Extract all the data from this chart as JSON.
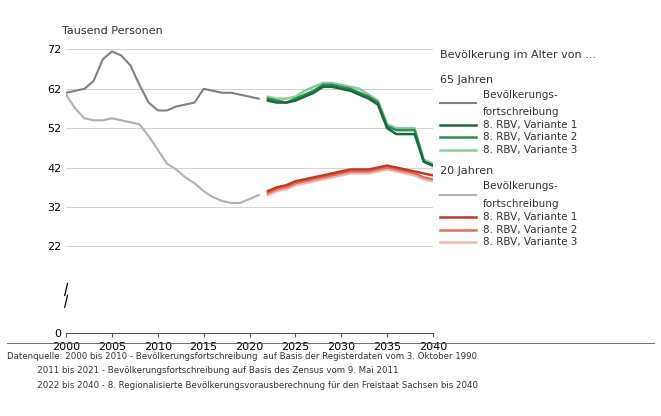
{
  "title_y_label": "Tausend Personen",
  "legend_title": "Bevölkerung im Alter von ...",
  "ylim": [
    0,
    74
  ],
  "yticks": [
    0,
    22,
    32,
    42,
    52,
    62,
    72
  ],
  "xlim": [
    2000,
    2040
  ],
  "xticks": [
    2000,
    2005,
    2010,
    2015,
    2020,
    2025,
    2030,
    2035,
    2040
  ],
  "background_color": "#ffffff",
  "footnote_line1": "Datenquelle: 2000 bis 2010 - Bevölkerungsfortschreibung  auf Basis der Registerdaten vom 3. Oktober 1990",
  "footnote_line2": "           2011 bis 2021 - Bevölkerungsfortschreibung auf Basis des Zensus vom 9. Mai 2011",
  "footnote_line3": "           2022 bis 2040 - 8. Regionalisierte Bevölkerungsvorausberechnung für den Freistaat Sachsen bis 2040",
  "series_65_bev": {
    "label": "Bevölkerungs-\nfortschreibung",
    "color": "#808080",
    "linewidth": 1.5,
    "x": [
      2000,
      2001,
      2002,
      2003,
      2004,
      2005,
      2006,
      2007,
      2008,
      2009,
      2010,
      2011,
      2012,
      2013,
      2014,
      2015,
      2016,
      2017,
      2018,
      2019,
      2020,
      2021
    ],
    "y": [
      61.0,
      61.5,
      62.0,
      64.0,
      69.5,
      71.5,
      70.5,
      68.0,
      63.0,
      58.5,
      56.5,
      56.5,
      57.5,
      58.0,
      58.5,
      62.0,
      61.5,
      61.0,
      61.0,
      60.5,
      60.0,
      59.5
    ]
  },
  "series_65_v1": {
    "label": "8. RBV, Variante 1",
    "color": "#1a6b3c",
    "linewidth": 1.8,
    "x": [
      2022,
      2023,
      2024,
      2025,
      2026,
      2027,
      2028,
      2029,
      2030,
      2031,
      2032,
      2033,
      2034,
      2035,
      2036,
      2037,
      2038,
      2039,
      2040
    ],
    "y": [
      59.0,
      58.5,
      58.5,
      59.0,
      60.0,
      61.0,
      62.5,
      62.5,
      62.0,
      61.5,
      60.5,
      59.5,
      58.0,
      52.0,
      50.5,
      50.5,
      50.5,
      43.5,
      42.5
    ]
  },
  "series_65_v2": {
    "label": "8. RBV, Variante 2",
    "color": "#2e8b57",
    "linewidth": 1.8,
    "x": [
      2022,
      2023,
      2024,
      2025,
      2026,
      2027,
      2028,
      2029,
      2030,
      2031,
      2032,
      2033,
      2034,
      2035,
      2036,
      2037,
      2038,
      2039,
      2040
    ],
    "y": [
      59.5,
      59.0,
      58.5,
      59.5,
      60.5,
      61.5,
      63.0,
      63.0,
      62.5,
      62.0,
      61.0,
      60.0,
      58.5,
      52.5,
      51.5,
      51.5,
      51.5,
      43.5,
      42.5
    ]
  },
  "series_65_v3": {
    "label": "8. RBV, Variante 3",
    "color": "#90c9a0",
    "linewidth": 1.8,
    "x": [
      2022,
      2023,
      2024,
      2025,
      2026,
      2027,
      2028,
      2029,
      2030,
      2031,
      2032,
      2033,
      2034,
      2035,
      2036,
      2037,
      2038,
      2039,
      2040
    ],
    "y": [
      60.0,
      59.5,
      59.5,
      60.0,
      61.5,
      62.5,
      63.5,
      63.5,
      63.0,
      62.5,
      62.0,
      60.5,
      59.0,
      53.0,
      52.0,
      52.0,
      52.0,
      44.0,
      43.0
    ]
  },
  "series_20_bev": {
    "label": "Bevölkerungs-\nfortschreibung",
    "color": "#b0b0b0",
    "linewidth": 1.5,
    "x": [
      2000,
      2001,
      2002,
      2003,
      2004,
      2005,
      2006,
      2007,
      2008,
      2009,
      2010,
      2011,
      2012,
      2013,
      2014,
      2015,
      2016,
      2017,
      2018,
      2019,
      2020,
      2021
    ],
    "y": [
      60.5,
      57.0,
      54.5,
      54.0,
      54.0,
      54.5,
      54.0,
      53.5,
      53.0,
      50.0,
      46.5,
      43.0,
      41.5,
      39.5,
      38.0,
      36.0,
      34.5,
      33.5,
      33.0,
      33.0,
      34.0,
      35.0
    ]
  },
  "series_20_v1": {
    "label": "8. RBV, Variante 1",
    "color": "#c0392b",
    "linewidth": 1.8,
    "x": [
      2022,
      2023,
      2024,
      2025,
      2026,
      2027,
      2028,
      2029,
      2030,
      2031,
      2032,
      2033,
      2034,
      2035,
      2036,
      2037,
      2038,
      2039,
      2040
    ],
    "y": [
      36.0,
      37.0,
      37.5,
      38.5,
      39.0,
      39.5,
      40.0,
      40.5,
      41.0,
      41.5,
      41.5,
      41.5,
      42.0,
      42.5,
      42.0,
      41.5,
      41.0,
      40.5,
      40.0
    ]
  },
  "series_20_v2": {
    "label": "8. RBV, Variante 2",
    "color": "#e07060",
    "linewidth": 1.8,
    "x": [
      2022,
      2023,
      2024,
      2025,
      2026,
      2027,
      2028,
      2029,
      2030,
      2031,
      2032,
      2033,
      2034,
      2035,
      2036,
      2037,
      2038,
      2039,
      2040
    ],
    "y": [
      35.5,
      36.5,
      37.0,
      38.0,
      38.5,
      39.0,
      39.5,
      40.0,
      40.5,
      41.0,
      41.0,
      41.0,
      41.5,
      42.0,
      41.5,
      41.0,
      40.5,
      39.5,
      39.0
    ]
  },
  "series_20_v3": {
    "label": "8. RBV, Variante 3",
    "color": "#f0b8b0",
    "linewidth": 1.8,
    "x": [
      2022,
      2023,
      2024,
      2025,
      2026,
      2027,
      2028,
      2029,
      2030,
      2031,
      2032,
      2033,
      2034,
      2035,
      2036,
      2037,
      2038,
      2039,
      2040
    ],
    "y": [
      35.0,
      36.0,
      36.5,
      37.5,
      38.0,
      38.5,
      39.0,
      39.5,
      40.0,
      40.5,
      40.5,
      40.5,
      41.0,
      41.5,
      41.0,
      40.5,
      40.0,
      39.0,
      38.5
    ]
  }
}
